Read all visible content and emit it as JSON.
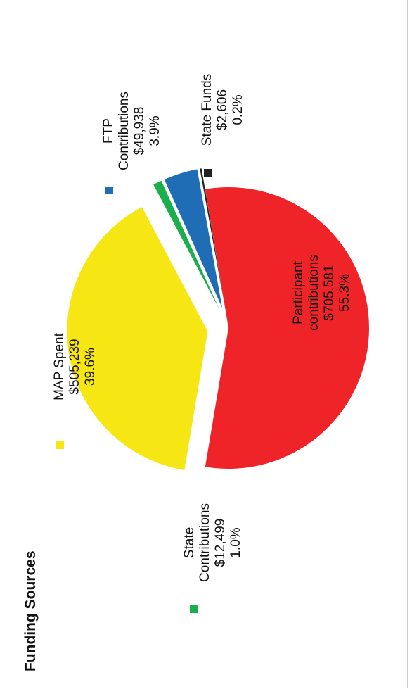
{
  "chart_data": {
    "type": "pie",
    "title": "Funding Sources",
    "slices": [
      {
        "name": "Participant contributions",
        "name_lines": [
          "Participant",
          "contributions"
        ],
        "amount": "$705,581",
        "percent": "55.3%",
        "value": 55.3,
        "color": "#ee2428",
        "exploded": false
      },
      {
        "name": "MAP Spent",
        "name_lines": [
          "MAP Spent"
        ],
        "amount": "$505,239",
        "percent": "39.6%",
        "value": 39.6,
        "color": "#f5e614",
        "exploded": true
      },
      {
        "name": "State Contributions",
        "name_lines": [
          "State",
          "Contributions"
        ],
        "amount": "$12,499",
        "percent": "1.0%",
        "value": 1.0,
        "color": "#1aaf4c",
        "exploded": true
      },
      {
        "name": "FTP Contributions",
        "name_lines": [
          "FTP",
          "Contributions"
        ],
        "amount": "$49,938",
        "percent": "3.9%",
        "value": 3.9,
        "color": "#1f6db5",
        "exploded": true
      },
      {
        "name": "State Funds",
        "name_lines": [
          "State Funds"
        ],
        "amount": "$2,606",
        "percent": "0.2%",
        "value": 0.2,
        "color": "#222222",
        "exploded": true
      }
    ]
  }
}
